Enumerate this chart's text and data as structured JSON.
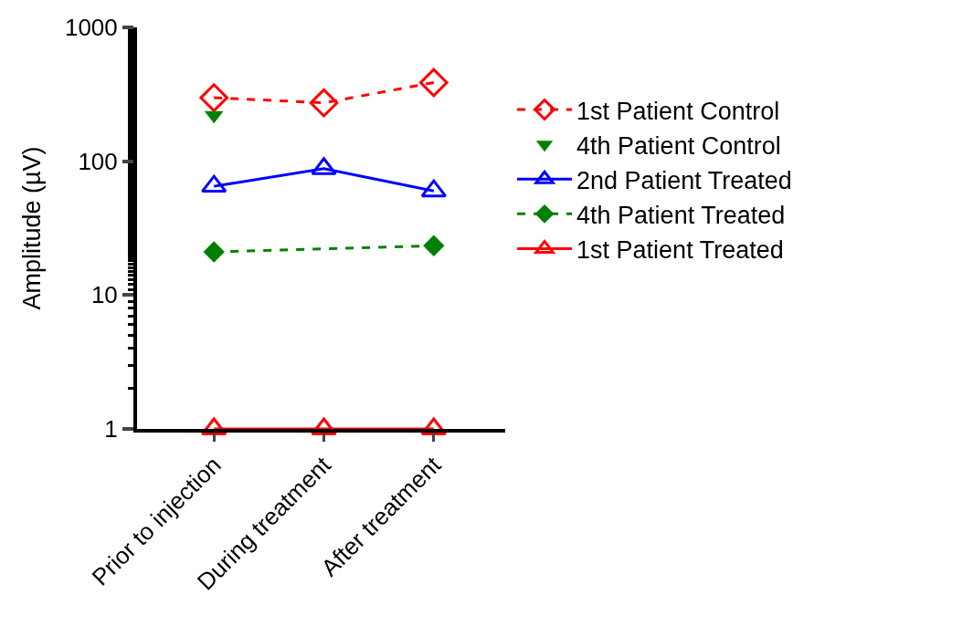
{
  "chart_data": {
    "type": "line",
    "ylabel": "Amplitude (µV)",
    "categories": [
      "Prior to injection",
      "During treatment",
      "After treatment"
    ],
    "log": true,
    "ylim": [
      1,
      1000
    ],
    "yticks": [
      1,
      10,
      100,
      1000
    ],
    "grid": false,
    "legend": "right",
    "series": [
      {
        "name": "1st Patient Control",
        "color": "#ff0000",
        "marker": "diamond-open",
        "line_style": "dashed",
        "values": [
          298,
          273,
          387
        ]
      },
      {
        "name": "4th Patient Control",
        "color": "#008000",
        "type": "scatter",
        "marker": "triangle-down",
        "values": [
          221,
          null,
          null
        ]
      },
      {
        "name": "2nd Patient Treated",
        "color": "#0000ff",
        "marker": "triangle-open",
        "line_style": "solid",
        "values": [
          65,
          88,
          60
        ]
      },
      {
        "name": "4th Patient Treated",
        "color": "#008000",
        "marker": "diamond",
        "line_style": "dashed",
        "values": [
          21,
          null,
          23.4
        ]
      },
      {
        "name": "1st Patient Treated",
        "color": "#ff0000",
        "marker": "triangle-open",
        "line_style": "solid",
        "values": [
          1,
          1,
          1
        ]
      }
    ]
  }
}
